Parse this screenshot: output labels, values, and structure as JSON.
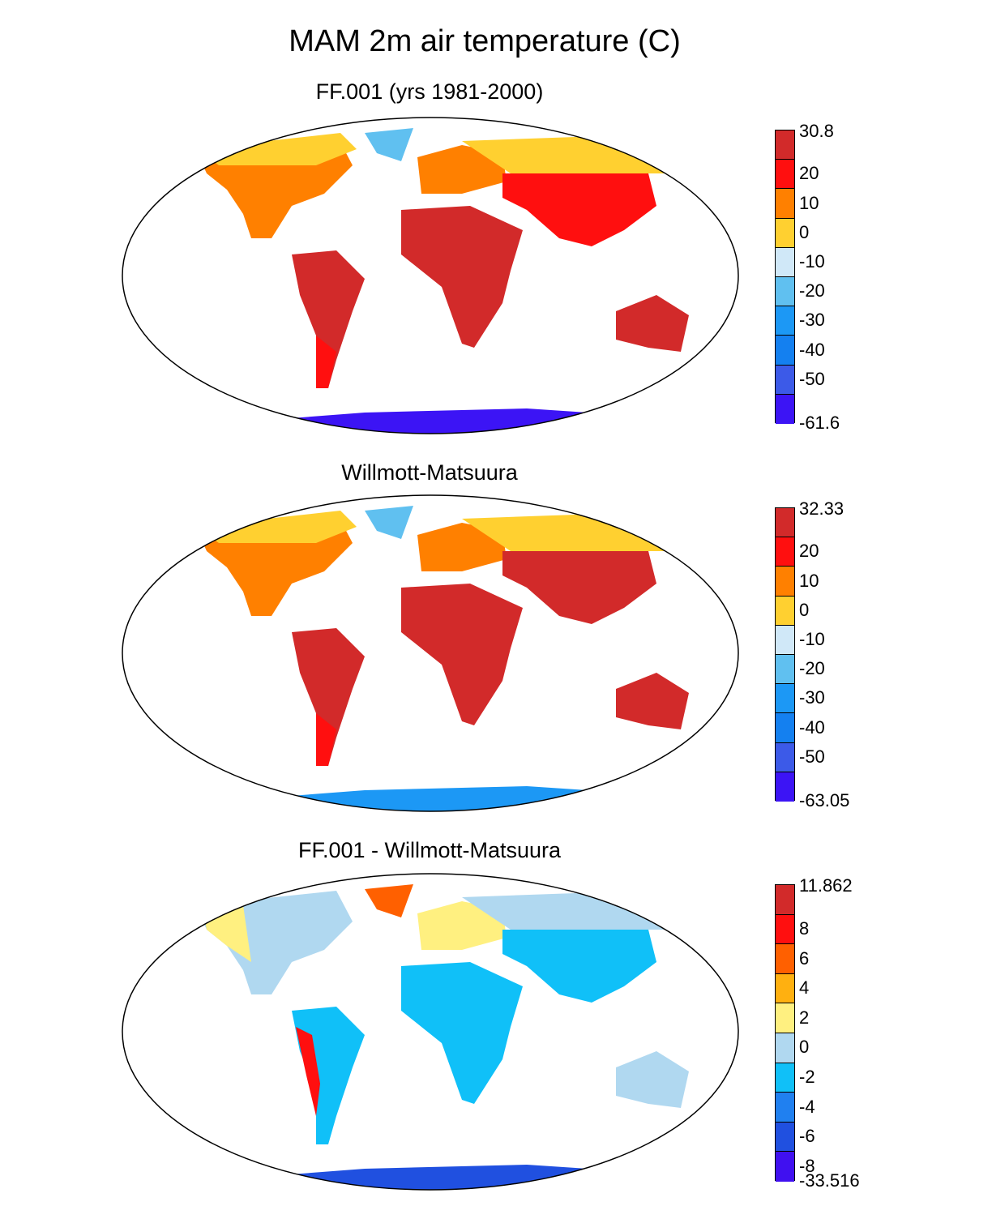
{
  "title": "MAM 2m air temperature (C)",
  "panels": [
    {
      "title": "FF.001 (yrs 1981-2000)",
      "colorbar": {
        "labels": [
          "30.8",
          "20",
          "10",
          "0",
          "-10",
          "-20",
          "-30",
          "-40",
          "-50",
          "-61.6"
        ],
        "colors": [
          "#d22a2a",
          "#ff0f0f",
          "#ff8000",
          "#ffd030",
          "#d0e8f8",
          "#60c0f0",
          "#1c98f5",
          "#1480f0",
          "#3c5ae8",
          "#3c14f5"
        ]
      }
    },
    {
      "title": "Willmott-Matsuura",
      "colorbar": {
        "labels": [
          "32.33",
          "20",
          "10",
          "0",
          "-10",
          "-20",
          "-30",
          "-40",
          "-50",
          "-63.05"
        ],
        "colors": [
          "#d22a2a",
          "#ff0f0f",
          "#ff8000",
          "#ffd030",
          "#d0e8f8",
          "#60c0f0",
          "#1c98f5",
          "#1480f0",
          "#3c5ae8",
          "#3c14f5"
        ]
      }
    },
    {
      "title": "FF.001 - Willmott-Matsuura",
      "colorbar": {
        "labels": [
          "11.862",
          "8",
          "6",
          "4",
          "2",
          "0",
          "-2",
          "-4",
          "-6",
          "-8",
          "-33.516"
        ],
        "colors": [
          "#d22a2a",
          "#ff0f0f",
          "#ff6000",
          "#ffb010",
          "#fff080",
          "#b0d8f0",
          "#10c0f8",
          "#2080f0",
          "#2050e0",
          "#4010f0"
        ]
      }
    }
  ]
}
